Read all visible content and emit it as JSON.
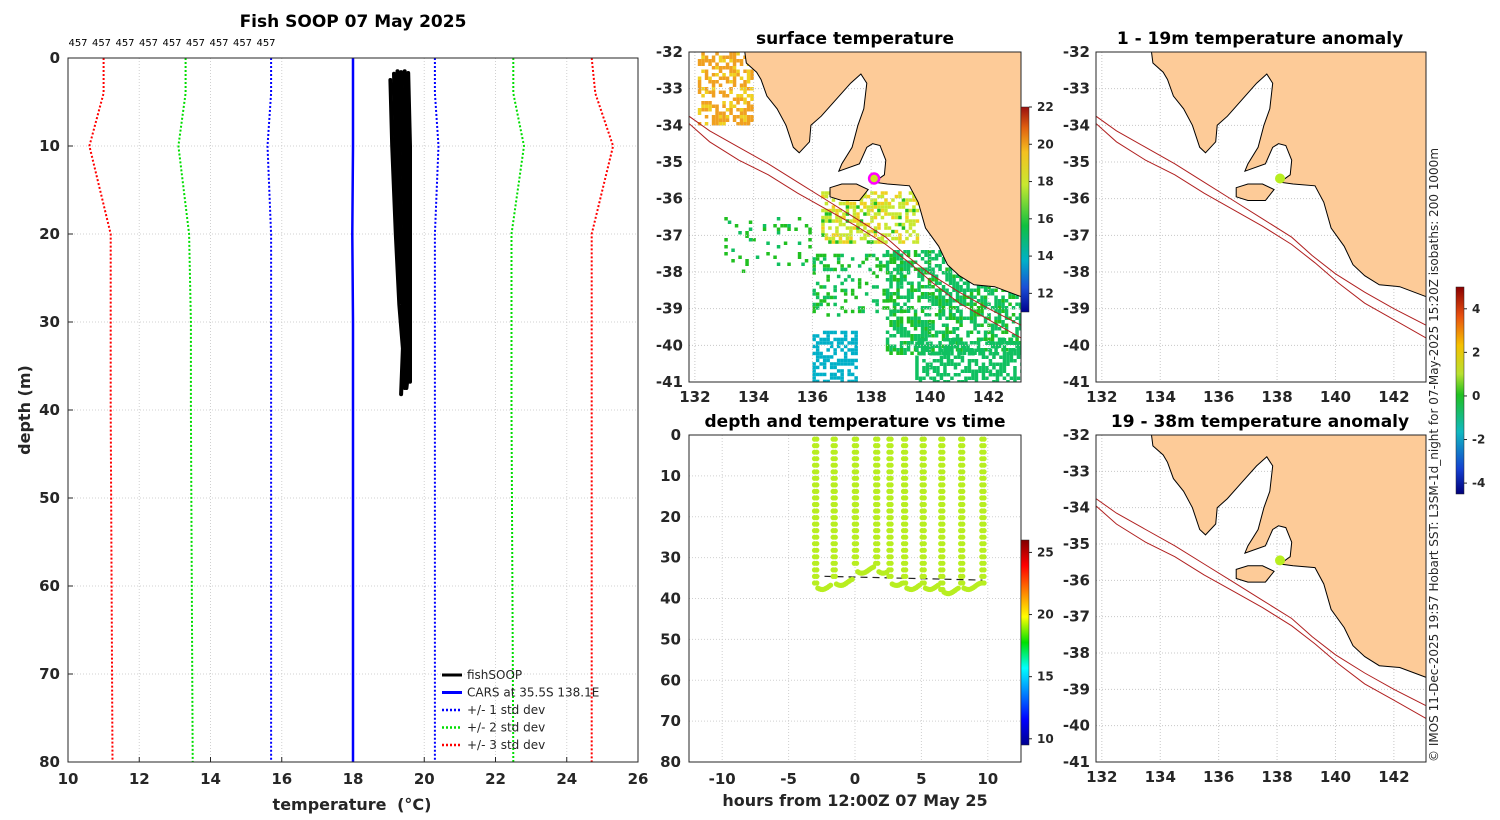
{
  "chart_data": [
    {
      "id": "profile",
      "type": "line",
      "title": "Fish SOOP 07 May 2025",
      "xlabel": "temperature",
      "xlabel_units": "(°C)",
      "ylabel": "depth (m)",
      "xlim": [
        10,
        26
      ],
      "ylim": [
        0,
        80
      ],
      "x_ticks": [
        "10",
        "12",
        "14",
        "16",
        "18",
        "20",
        "22",
        "24",
        "26"
      ],
      "y_ticks": [
        "0",
        "10",
        "20",
        "30",
        "40",
        "50",
        "60",
        "70",
        "80"
      ],
      "counts": [
        "457",
        "457",
        "457",
        "457",
        "457",
        "457",
        "457",
        "457",
        "457"
      ],
      "profile_depths": [
        0,
        4,
        10,
        20,
        30,
        40,
        80
      ],
      "cars_mean": [
        18.0,
        18.0,
        18.0,
        17.98,
        18.0,
        18.0,
        18.0
      ],
      "std1_low": [
        15.7,
        15.7,
        15.6,
        15.7,
        15.7,
        15.7,
        15.7
      ],
      "std1_high": [
        20.3,
        20.3,
        20.4,
        20.3,
        20.3,
        20.3,
        20.3
      ],
      "std2_low": [
        13.3,
        13.3,
        13.1,
        13.4,
        13.45,
        13.45,
        13.5
      ],
      "std2_high": [
        22.5,
        22.5,
        22.8,
        22.45,
        22.45,
        22.45,
        22.5
      ],
      "std3_low": [
        11.0,
        11.0,
        10.6,
        11.2,
        11.2,
        11.2,
        11.25
      ],
      "std3_high": [
        24.7,
        24.8,
        25.3,
        24.7,
        24.7,
        24.7,
        24.7
      ],
      "fishsoop_casts": [
        [
          [
            19.05,
            2.5
          ],
          [
            19.1,
            10
          ],
          [
            19.2,
            20
          ],
          [
            19.3,
            28
          ],
          [
            19.4,
            33
          ],
          [
            19.35,
            38.2
          ]
        ],
        [
          [
            19.15,
            1.8
          ],
          [
            19.2,
            10
          ],
          [
            19.3,
            20
          ],
          [
            19.4,
            28
          ],
          [
            19.45,
            33
          ],
          [
            19.45,
            37.5
          ]
        ],
        [
          [
            19.25,
            1.5
          ],
          [
            19.3,
            10
          ],
          [
            19.35,
            20
          ],
          [
            19.45,
            29
          ],
          [
            19.5,
            34
          ],
          [
            19.5,
            36.8
          ]
        ],
        [
          [
            19.35,
            1.6
          ],
          [
            19.4,
            10
          ],
          [
            19.45,
            20
          ],
          [
            19.5,
            29
          ],
          [
            19.55,
            34
          ],
          [
            19.55,
            36.2
          ]
        ],
        [
          [
            19.45,
            1.5
          ],
          [
            19.5,
            10
          ],
          [
            19.5,
            20
          ],
          [
            19.55,
            29
          ],
          [
            19.6,
            34
          ],
          [
            19.6,
            36.8
          ]
        ],
        [
          [
            19.55,
            1.7
          ],
          [
            19.6,
            10
          ],
          [
            19.6,
            20
          ],
          [
            19.6,
            30
          ],
          [
            19.6,
            34
          ],
          [
            19.5,
            37.5
          ]
        ]
      ],
      "legend": [
        {
          "label": "fishSOOP",
          "color": "#000000",
          "style": "solid"
        },
        {
          "label": "CARS at 35.5S 138.1E",
          "color": "#0000ff",
          "style": "solid"
        },
        {
          "label": "+/- 1 std dev",
          "color": "#0000ff",
          "style": "dotted"
        },
        {
          "label": "+/- 2 std dev",
          "color": "#00dd00",
          "style": "dotted"
        },
        {
          "label": "+/- 3 std dev",
          "color": "#ff0000",
          "style": "dotted"
        }
      ]
    },
    {
      "id": "surface_map",
      "type": "heatmap",
      "title": "surface temperature",
      "lon_ticks": [
        "132",
        "134",
        "136",
        "138",
        "140",
        "142"
      ],
      "lat_ticks": [
        "-32",
        "-33",
        "-34",
        "-35",
        "-36",
        "-37",
        "-38",
        "-39",
        "-40",
        "-41"
      ],
      "colorbar_ticks": [
        "12",
        "14",
        "16",
        "18",
        "20",
        "22"
      ],
      "colorbar_range": [
        11,
        22
      ],
      "marker": {
        "lon": 138.1,
        "lat": -35.45
      }
    },
    {
      "id": "depth_time",
      "type": "scatter",
      "title": "depth and temperature vs time",
      "xlabel": "hours from 12:00Z 07 May 25",
      "xlim": [
        -12.5,
        12.5
      ],
      "ylim": [
        0,
        80
      ],
      "x_ticks": [
        "-10",
        "-5",
        "0",
        "5",
        "10"
      ],
      "y_ticks": [
        "0",
        "10",
        "20",
        "30",
        "40",
        "50",
        "60",
        "70",
        "80"
      ],
      "colorbar_ticks": [
        "10",
        "15",
        "20",
        "25"
      ],
      "colorbar_range": [
        9.5,
        26
      ],
      "cast_times": [
        -3.0,
        -1.6,
        0.0,
        1.6,
        2.6,
        3.7,
        5.1,
        6.5,
        8.0,
        9.6
      ],
      "bottom_depths": [
        37,
        36,
        33,
        33,
        36,
        37,
        37,
        38,
        37,
        37
      ],
      "bottom_line_depth": 34.5,
      "point_temperature": 19.4
    },
    {
      "id": "anom_shallow",
      "type": "heatmap",
      "title": "1 - 19m temperature anomaly",
      "lon_ticks": [
        "132",
        "134",
        "136",
        "138",
        "140",
        "142"
      ],
      "lat_ticks": [
        "-32",
        "-33",
        "-34",
        "-35",
        "-36",
        "-37",
        "-38",
        "-39",
        "-40",
        "-41"
      ],
      "marker": {
        "lon": 138.1,
        "lat": -35.45
      }
    },
    {
      "id": "anom_deep",
      "type": "heatmap",
      "title": "19 - 38m temperature anomaly",
      "lon_ticks": [
        "132",
        "134",
        "136",
        "138",
        "140",
        "142"
      ],
      "lat_ticks": [
        "-32",
        "-33",
        "-34",
        "-35",
        "-36",
        "-37",
        "-38",
        "-39",
        "-40",
        "-41"
      ],
      "marker": {
        "lon": 138.1,
        "lat": -35.45
      }
    },
    {
      "id": "anomaly_colorbar",
      "type": "heatmap",
      "colorbar_ticks": [
        "4",
        "2",
        "0",
        "-2",
        "-4"
      ],
      "colorbar_range": [
        -4.5,
        5
      ]
    }
  ],
  "credit": "© IMOS 11-Dec-2025 19:57 Hobart SST: L3SM-1d_night for 07-May-2025 15:20Z  isobaths: 200  1000m"
}
